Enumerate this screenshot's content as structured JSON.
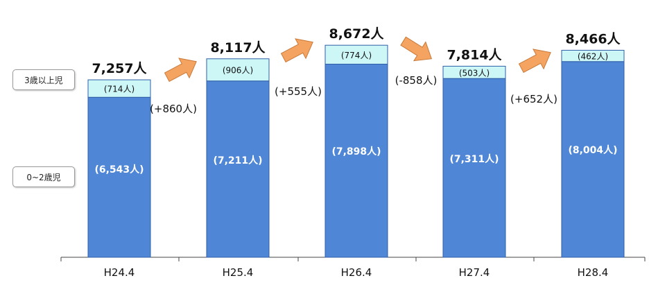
{
  "chart_data": {
    "type": "bar",
    "stacked": true,
    "categories": [
      "H24.4",
      "H25.4",
      "H26.4",
      "H27.4",
      "H28.4"
    ],
    "series": [
      {
        "name": "0~2歳児",
        "values": [
          6543,
          7211,
          7898,
          7311,
          8004
        ],
        "labels": [
          "(6,543人)",
          "(7,211人)",
          "(7,898人)",
          "(7,311人)",
          "(8,004人)"
        ],
        "color": "#4f86d6"
      },
      {
        "name": "3歳以上児",
        "values": [
          714,
          906,
          774,
          503,
          462
        ],
        "labels": [
          "(714人)",
          "(906人)",
          "(774人)",
          "(503人)",
          "(462人)"
        ],
        "color": "#cdf6f6"
      }
    ],
    "totals": [
      7257,
      8117,
      8672,
      7814,
      8466
    ],
    "total_labels": [
      "7,257人",
      "8,117人",
      "8,672人",
      "7,814人",
      "8,466人"
    ],
    "changes": [
      {
        "label": "(+860人)",
        "direction": "up"
      },
      {
        "label": "(+555人)",
        "direction": "up"
      },
      {
        "label": "(-858人)",
        "direction": "down"
      },
      {
        "label": "(+652人)",
        "direction": "up"
      }
    ],
    "arrow_color": "#f4a460",
    "ylim": [
      0,
      9500
    ],
    "grid": false,
    "legend_placement": "left"
  }
}
